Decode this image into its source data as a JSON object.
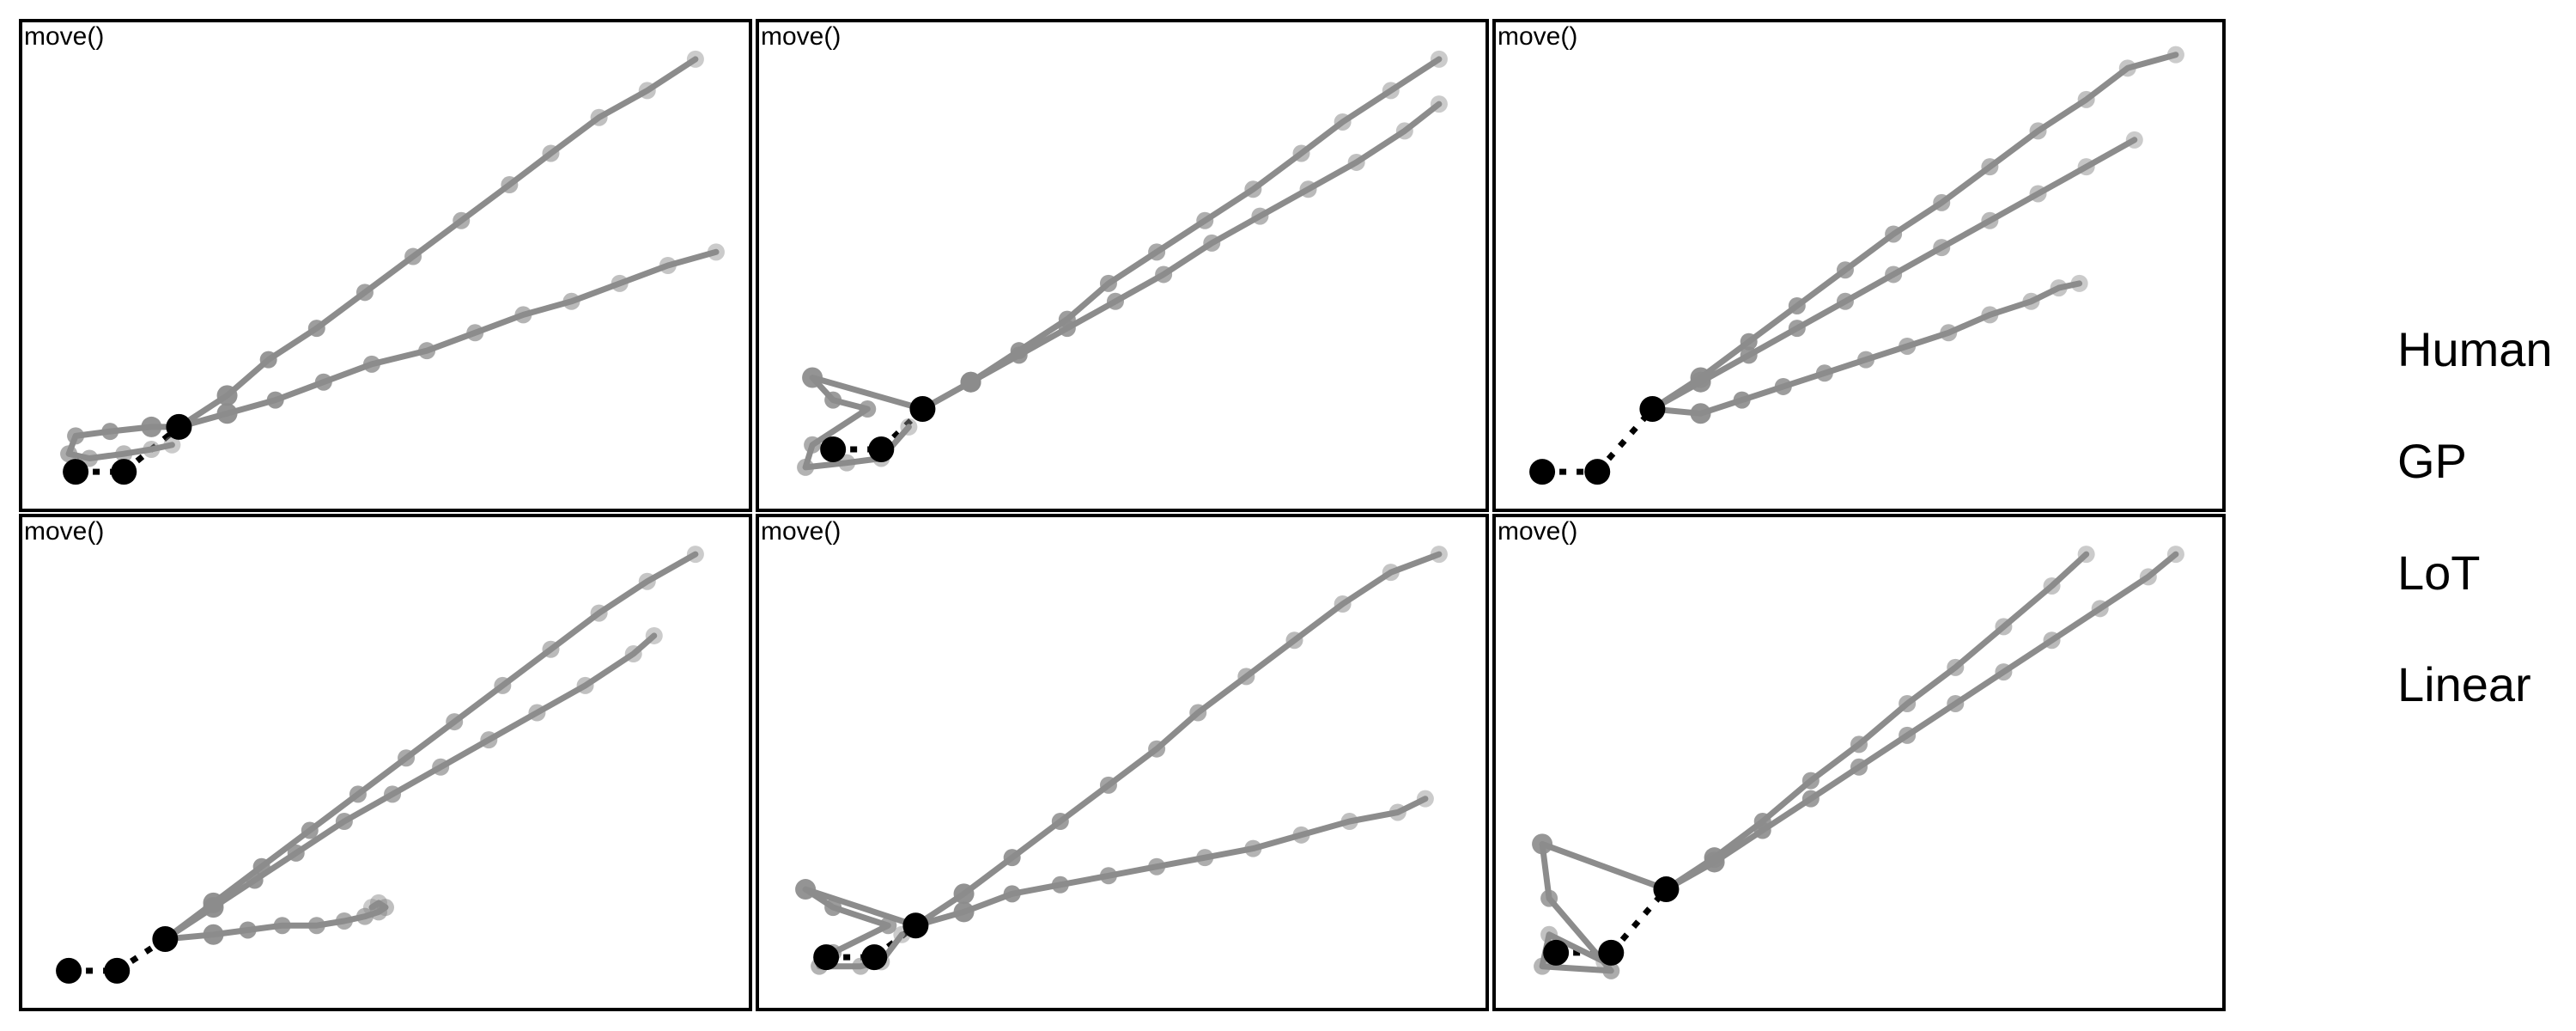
{
  "figure": {
    "panel_label": "move()",
    "legend": [
      {
        "label": "Human"
      },
      {
        "label": "GP"
      },
      {
        "label": "LoT"
      },
      {
        "label": "Linear"
      }
    ]
  },
  "colors": {
    "frame": "#000000",
    "trajectory": "#8c8c8c",
    "trajectory_fade": "#c9c9c9",
    "anchor": "#000000"
  },
  "chart_data": [
    {
      "type": "scatter",
      "panel": "top-left",
      "title": "move()",
      "anchors": [
        [
          0.05,
          0.04
        ],
        [
          0.12,
          0.04
        ],
        [
          0.2,
          0.14
        ]
      ],
      "trajectories": [
        [
          [
            0.2,
            0.14
          ],
          [
            0.27,
            0.21
          ],
          [
            0.33,
            0.29
          ],
          [
            0.4,
            0.36
          ],
          [
            0.47,
            0.44
          ],
          [
            0.54,
            0.52
          ],
          [
            0.61,
            0.6
          ],
          [
            0.68,
            0.68
          ],
          [
            0.74,
            0.75
          ],
          [
            0.81,
            0.83
          ],
          [
            0.88,
            0.89
          ],
          [
            0.95,
            0.96
          ]
        ],
        [
          [
            0.2,
            0.14
          ],
          [
            0.27,
            0.17
          ],
          [
            0.34,
            0.2
          ],
          [
            0.41,
            0.24
          ],
          [
            0.48,
            0.28
          ],
          [
            0.56,
            0.31
          ],
          [
            0.63,
            0.35
          ],
          [
            0.7,
            0.39
          ],
          [
            0.77,
            0.42
          ],
          [
            0.84,
            0.46
          ],
          [
            0.91,
            0.5
          ],
          [
            0.98,
            0.53
          ]
        ],
        [
          [
            0.2,
            0.14
          ],
          [
            0.16,
            0.14
          ],
          [
            0.1,
            0.13
          ],
          [
            0.05,
            0.12
          ],
          [
            0.04,
            0.08
          ],
          [
            0.07,
            0.07
          ],
          [
            0.12,
            0.08
          ],
          [
            0.16,
            0.09
          ],
          [
            0.19,
            0.1
          ]
        ]
      ]
    },
    {
      "type": "scatter",
      "panel": "top-middle",
      "title": "move()",
      "anchors": [
        [
          0.08,
          0.09
        ],
        [
          0.15,
          0.09
        ],
        [
          0.21,
          0.18
        ]
      ],
      "trajectories": [
        [
          [
            0.21,
            0.18
          ],
          [
            0.28,
            0.24
          ],
          [
            0.35,
            0.31
          ],
          [
            0.42,
            0.38
          ],
          [
            0.48,
            0.46
          ],
          [
            0.55,
            0.53
          ],
          [
            0.62,
            0.6
          ],
          [
            0.69,
            0.67
          ],
          [
            0.76,
            0.75
          ],
          [
            0.82,
            0.82
          ],
          [
            0.89,
            0.89
          ],
          [
            0.96,
            0.96
          ]
        ],
        [
          [
            0.21,
            0.18
          ],
          [
            0.28,
            0.24
          ],
          [
            0.35,
            0.3
          ],
          [
            0.42,
            0.36
          ],
          [
            0.49,
            0.42
          ],
          [
            0.56,
            0.48
          ],
          [
            0.63,
            0.55
          ],
          [
            0.7,
            0.61
          ],
          [
            0.77,
            0.67
          ],
          [
            0.84,
            0.73
          ],
          [
            0.91,
            0.8
          ],
          [
            0.96,
            0.86
          ]
        ],
        [
          [
            0.21,
            0.18
          ],
          [
            0.05,
            0.25
          ],
          [
            0.08,
            0.2
          ],
          [
            0.13,
            0.18
          ],
          [
            0.05,
            0.1
          ],
          [
            0.04,
            0.05
          ],
          [
            0.1,
            0.06
          ],
          [
            0.15,
            0.07
          ],
          [
            0.19,
            0.14
          ]
        ]
      ]
    },
    {
      "type": "scatter",
      "panel": "top-right",
      "title": "move()",
      "anchors": [
        [
          0.04,
          0.04
        ],
        [
          0.12,
          0.04
        ],
        [
          0.2,
          0.18
        ]
      ],
      "trajectories": [
        [
          [
            0.2,
            0.18
          ],
          [
            0.27,
            0.25
          ],
          [
            0.34,
            0.33
          ],
          [
            0.41,
            0.41
          ],
          [
            0.48,
            0.49
          ],
          [
            0.55,
            0.57
          ],
          [
            0.62,
            0.64
          ],
          [
            0.69,
            0.72
          ],
          [
            0.76,
            0.8
          ],
          [
            0.83,
            0.87
          ],
          [
            0.89,
            0.94
          ],
          [
            0.96,
            0.97
          ]
        ],
        [
          [
            0.2,
            0.18
          ],
          [
            0.27,
            0.24
          ],
          [
            0.34,
            0.3
          ],
          [
            0.41,
            0.36
          ],
          [
            0.48,
            0.42
          ],
          [
            0.55,
            0.48
          ],
          [
            0.62,
            0.54
          ],
          [
            0.69,
            0.6
          ],
          [
            0.76,
            0.66
          ],
          [
            0.83,
            0.72
          ],
          [
            0.9,
            0.78
          ]
        ],
        [
          [
            0.2,
            0.18
          ],
          [
            0.27,
            0.17
          ],
          [
            0.33,
            0.2
          ],
          [
            0.39,
            0.23
          ],
          [
            0.45,
            0.26
          ],
          [
            0.51,
            0.29
          ],
          [
            0.57,
            0.32
          ],
          [
            0.63,
            0.35
          ],
          [
            0.69,
            0.39
          ],
          [
            0.75,
            0.42
          ],
          [
            0.79,
            0.45
          ],
          [
            0.82,
            0.46
          ]
        ]
      ]
    },
    {
      "type": "scatter",
      "panel": "bottom-left",
      "title": "move()",
      "anchors": [
        [
          0.04,
          0.04
        ],
        [
          0.11,
          0.04
        ],
        [
          0.18,
          0.11
        ]
      ],
      "trajectories": [
        [
          [
            0.18,
            0.11
          ],
          [
            0.25,
            0.19
          ],
          [
            0.32,
            0.27
          ],
          [
            0.39,
            0.35
          ],
          [
            0.46,
            0.43
          ],
          [
            0.53,
            0.51
          ],
          [
            0.6,
            0.59
          ],
          [
            0.67,
            0.67
          ],
          [
            0.74,
            0.75
          ],
          [
            0.81,
            0.83
          ],
          [
            0.88,
            0.9
          ],
          [
            0.95,
            0.96
          ]
        ],
        [
          [
            0.18,
            0.11
          ],
          [
            0.25,
            0.18
          ],
          [
            0.31,
            0.24
          ],
          [
            0.37,
            0.3
          ],
          [
            0.44,
            0.37
          ],
          [
            0.51,
            0.43
          ],
          [
            0.58,
            0.49
          ],
          [
            0.65,
            0.55
          ],
          [
            0.72,
            0.61
          ],
          [
            0.79,
            0.67
          ],
          [
            0.86,
            0.74
          ],
          [
            0.89,
            0.78
          ]
        ],
        [
          [
            0.18,
            0.11
          ],
          [
            0.25,
            0.12
          ],
          [
            0.3,
            0.13
          ],
          [
            0.35,
            0.14
          ],
          [
            0.4,
            0.14
          ],
          [
            0.44,
            0.15
          ],
          [
            0.47,
            0.16
          ],
          [
            0.49,
            0.17
          ],
          [
            0.5,
            0.18
          ],
          [
            0.49,
            0.19
          ],
          [
            0.48,
            0.18
          ]
        ]
      ]
    },
    {
      "type": "scatter",
      "panel": "bottom-middle",
      "title": "move()",
      "anchors": [
        [
          0.07,
          0.07
        ],
        [
          0.14,
          0.07
        ],
        [
          0.2,
          0.14
        ]
      ],
      "trajectories": [
        [
          [
            0.2,
            0.14
          ],
          [
            0.27,
            0.21
          ],
          [
            0.34,
            0.29
          ],
          [
            0.41,
            0.37
          ],
          [
            0.48,
            0.45
          ],
          [
            0.55,
            0.53
          ],
          [
            0.61,
            0.61
          ],
          [
            0.68,
            0.69
          ],
          [
            0.75,
            0.77
          ],
          [
            0.82,
            0.85
          ],
          [
            0.89,
            0.92
          ],
          [
            0.96,
            0.96
          ]
        ],
        [
          [
            0.2,
            0.14
          ],
          [
            0.27,
            0.17
          ],
          [
            0.34,
            0.21
          ],
          [
            0.41,
            0.23
          ],
          [
            0.48,
            0.25
          ],
          [
            0.55,
            0.27
          ],
          [
            0.62,
            0.29
          ],
          [
            0.69,
            0.31
          ],
          [
            0.76,
            0.34
          ],
          [
            0.83,
            0.37
          ],
          [
            0.9,
            0.39
          ],
          [
            0.94,
            0.42
          ]
        ],
        [
          [
            0.2,
            0.14
          ],
          [
            0.04,
            0.22
          ],
          [
            0.08,
            0.18
          ],
          [
            0.16,
            0.14
          ],
          [
            0.08,
            0.08
          ],
          [
            0.06,
            0.05
          ],
          [
            0.12,
            0.05
          ],
          [
            0.15,
            0.06
          ],
          [
            0.18,
            0.12
          ]
        ]
      ]
    },
    {
      "type": "scatter",
      "panel": "bottom-right",
      "title": "move()",
      "anchors": [
        [
          0.06,
          0.08
        ],
        [
          0.14,
          0.08
        ],
        [
          0.22,
          0.22
        ]
      ],
      "trajectories": [
        [
          [
            0.22,
            0.22
          ],
          [
            0.29,
            0.29
          ],
          [
            0.36,
            0.37
          ],
          [
            0.43,
            0.46
          ],
          [
            0.5,
            0.54
          ],
          [
            0.57,
            0.63
          ],
          [
            0.64,
            0.71
          ],
          [
            0.71,
            0.8
          ],
          [
            0.78,
            0.89
          ],
          [
            0.83,
            0.96
          ]
        ],
        [
          [
            0.22,
            0.22
          ],
          [
            0.29,
            0.28
          ],
          [
            0.36,
            0.35
          ],
          [
            0.43,
            0.42
          ],
          [
            0.5,
            0.49
          ],
          [
            0.57,
            0.56
          ],
          [
            0.64,
            0.63
          ],
          [
            0.71,
            0.7
          ],
          [
            0.78,
            0.77
          ],
          [
            0.85,
            0.84
          ],
          [
            0.92,
            0.91
          ],
          [
            0.96,
            0.96
          ]
        ],
        [
          [
            0.22,
            0.22
          ],
          [
            0.04,
            0.32
          ],
          [
            0.05,
            0.2
          ],
          [
            0.14,
            0.04
          ],
          [
            0.04,
            0.05
          ],
          [
            0.05,
            0.12
          ],
          [
            0.13,
            0.06
          ]
        ]
      ]
    }
  ]
}
